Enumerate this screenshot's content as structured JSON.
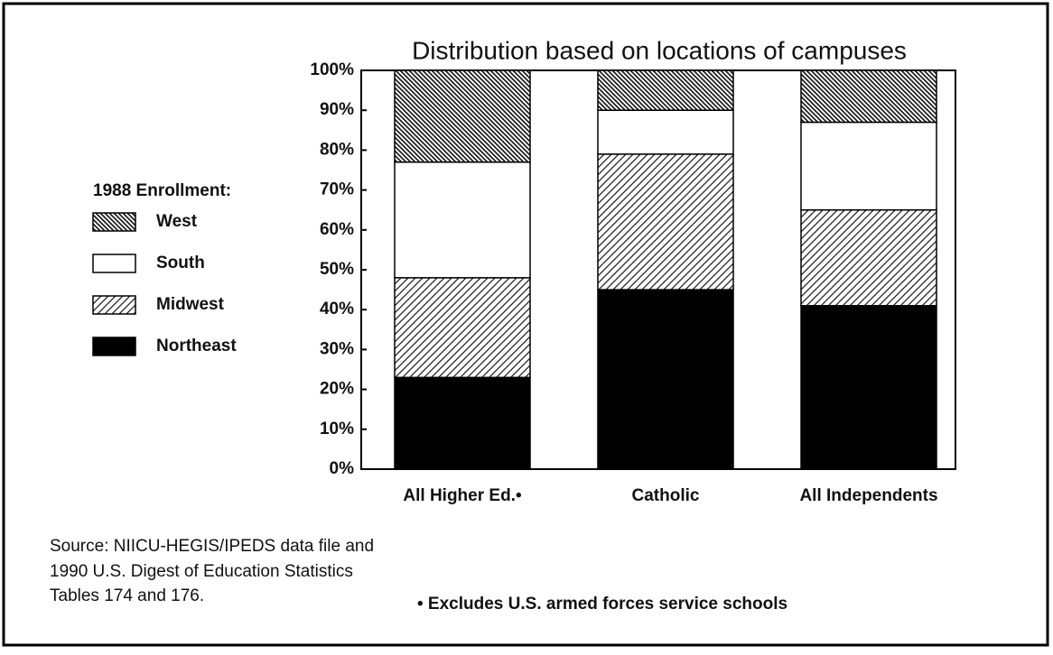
{
  "chart_data": {
    "type": "stacked_bar",
    "title": "Distribution based on locations of campuses",
    "legend_title": "1988 Enrollment:",
    "categories": [
      "All Higher Ed.•",
      "Catholic",
      "All Independents"
    ],
    "series": [
      {
        "name": "Northeast",
        "color": "#000000",
        "pattern": "solid",
        "values": [
          23,
          45,
          41
        ]
      },
      {
        "name": "Midwest",
        "color": "#000000",
        "pattern": "slash",
        "values": [
          25,
          34,
          24
        ]
      },
      {
        "name": "South",
        "color": "#ffffff",
        "pattern": "none",
        "values": [
          29,
          11,
          22
        ]
      },
      {
        "name": "West",
        "color": "#000000",
        "pattern": "backslash",
        "values": [
          23,
          10,
          13
        ]
      }
    ],
    "ylim": [
      0,
      100
    ],
    "yticks": [
      {
        "value": 0,
        "label": "0%"
      },
      {
        "value": 10,
        "label": "10%"
      },
      {
        "value": 20,
        "label": "20%"
      },
      {
        "value": 30,
        "label": "30%"
      },
      {
        "value": 40,
        "label": "40%"
      },
      {
        "value": 50,
        "label": "50%"
      },
      {
        "value": 60,
        "label": "60%"
      },
      {
        "value": 70,
        "label": "70%"
      },
      {
        "value": 80,
        "label": "80%"
      },
      {
        "value": 90,
        "label": "90%"
      },
      {
        "value": 100,
        "label": "100%"
      }
    ],
    "legend": "left",
    "source": [
      "Source: NIICU-HEGIS/IPEDS data file and",
      "1990 U.S. Digest of Education Statistics",
      "Tables 174 and 176."
    ],
    "footnote": "• Excludes U.S. armed forces service schools"
  }
}
